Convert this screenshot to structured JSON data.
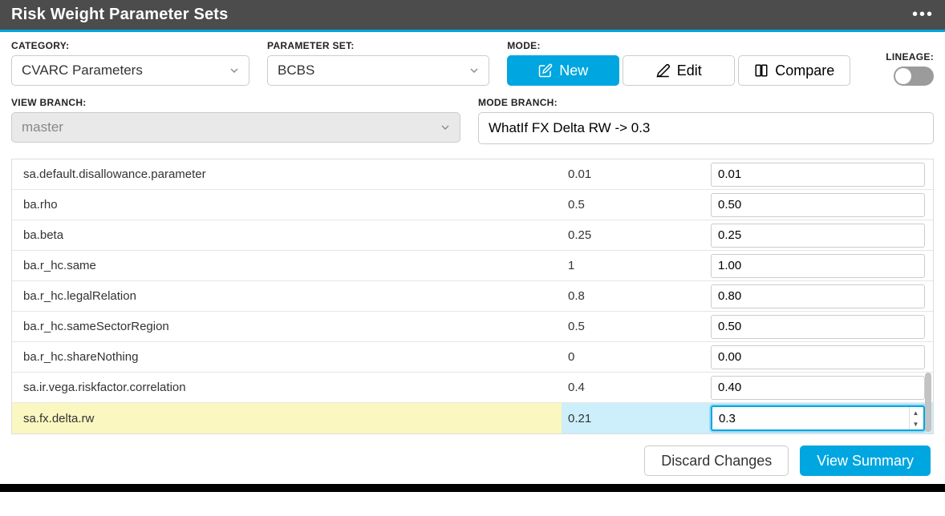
{
  "colors": {
    "accent": "#00a6e0",
    "titlebar_bg": "#4c4c4c",
    "highlight_name_bg": "#fbf7c0",
    "highlight_value_bg": "#cdeefb",
    "border": "#cccccc",
    "row_border": "#e6e6e6",
    "disabled_bg": "#e9e9e9",
    "scrollbar_thumb": "#c3c3c3"
  },
  "title": "Risk Weight Parameter Sets",
  "labels": {
    "category": "CATEGORY:",
    "parameter_set": "PARAMETER SET:",
    "mode": "MODE:",
    "lineage": "LINEAGE:",
    "view_branch": "VIEW BRANCH:",
    "mode_branch": "MODE BRANCH:"
  },
  "category": {
    "selected": "CVARC Parameters"
  },
  "parameter_set": {
    "selected": "BCBS"
  },
  "mode_buttons": {
    "new": "New",
    "edit": "Edit",
    "compare": "Compare"
  },
  "lineage": {
    "enabled": false
  },
  "view_branch": {
    "value": "master"
  },
  "mode_branch": {
    "value": "WhatIf FX Delta RW -> 0.3"
  },
  "table": {
    "columns": [
      "name",
      "current",
      "input"
    ],
    "rows": [
      {
        "name": "sa.default.disallowance.parameter",
        "current": "0.01",
        "input": "0.01",
        "highlight": false
      },
      {
        "name": "ba.rho",
        "current": "0.5",
        "input": "0.50",
        "highlight": false
      },
      {
        "name": "ba.beta",
        "current": "0.25",
        "input": "0.25",
        "highlight": false
      },
      {
        "name": "ba.r_hc.same",
        "current": "1",
        "input": "1.00",
        "highlight": false
      },
      {
        "name": "ba.r_hc.legalRelation",
        "current": "0.8",
        "input": "0.80",
        "highlight": false
      },
      {
        "name": "ba.r_hc.sameSectorRegion",
        "current": "0.5",
        "input": "0.50",
        "highlight": false
      },
      {
        "name": "ba.r_hc.shareNothing",
        "current": "0",
        "input": "0.00",
        "highlight": false
      },
      {
        "name": "sa.ir.vega.riskfactor.correlation",
        "current": "0.4",
        "input": "0.40",
        "highlight": false
      },
      {
        "name": "sa.fx.delta.rw",
        "current": "0.21",
        "input": "0.3",
        "highlight": true
      }
    ]
  },
  "footer": {
    "discard": "Discard Changes",
    "view_summary": "View Summary"
  }
}
